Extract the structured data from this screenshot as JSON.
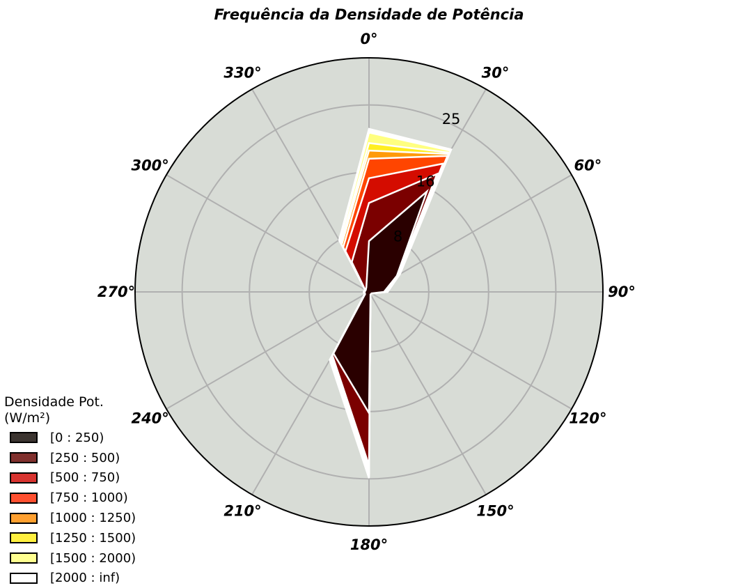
{
  "chart_data": {
    "type": "polar_stacked_area",
    "title": "Frequência da Densidade de Potência",
    "directions": [
      0,
      30,
      60,
      90,
      120,
      150,
      180,
      210,
      240,
      270,
      300,
      330
    ],
    "angle_labels": [
      "0°",
      "30°",
      "60°",
      "90°",
      "120°",
      "150°",
      "180°",
      "210°",
      "240°",
      "270°",
      "300°",
      "330°"
    ],
    "radial_ticks": [
      8,
      16,
      25
    ],
    "rmax": 31.3,
    "legend_title": "Densidade Pot.\n(W/m²)",
    "series": [
      {
        "name": "[0 : 250)",
        "color": "#2a0000",
        "legend_color": "#3b3430",
        "values": [
          6.8,
          15.5,
          4.3,
          2.0,
          0.4,
          0.4,
          16.2,
          9.5,
          0.6,
          0.6,
          0.5,
          0.7
        ]
      },
      {
        "name": "[250 : 500)",
        "color": "#7b0000",
        "legend_color": "#80302d",
        "values": [
          11.9,
          18.2,
          4.4,
          2.1,
          0.4,
          0.4,
          23.2,
          9.8,
          0.6,
          0.6,
          0.6,
          4.6
        ]
      },
      {
        "name": "[500 : 750)",
        "color": "#d40c00",
        "legend_color": "#d83430",
        "values": [
          15.2,
          19.8,
          4.5,
          2.2,
          0.4,
          0.4,
          23.8,
          10.0,
          0.7,
          0.7,
          0.6,
          6.3
        ]
      },
      {
        "name": "[750 : 1000)",
        "color": "#ff4500",
        "legend_color": "#ff5030",
        "values": [
          17.8,
          21.0,
          4.6,
          2.3,
          0.4,
          0.4,
          24.1,
          10.1,
          0.7,
          0.7,
          0.6,
          6.9
        ]
      },
      {
        "name": "[1000 : 1250)",
        "color": "#ff9a0a",
        "legend_color": "#ffa030",
        "values": [
          18.9,
          21.3,
          4.7,
          2.3,
          0.4,
          0.4,
          24.3,
          10.2,
          0.7,
          0.7,
          0.6,
          7.3
        ]
      },
      {
        "name": "[1250 : 1500)",
        "color": "#ffee20",
        "legend_color": "#fff040",
        "values": [
          19.9,
          21.5,
          4.7,
          2.4,
          0.4,
          0.4,
          24.5,
          10.3,
          0.7,
          0.7,
          0.6,
          7.5
        ]
      },
      {
        "name": "[1500 : 2000)",
        "color": "#ffff80",
        "legend_color": "#ffff90",
        "values": [
          21.3,
          21.8,
          4.8,
          2.4,
          0.4,
          0.4,
          24.7,
          10.4,
          0.7,
          0.7,
          0.6,
          7.8
        ]
      },
      {
        "name": "[2000 : inf)",
        "color": "#ffffff",
        "legend_color": "#ffffff",
        "values": [
          21.8,
          22.0,
          4.8,
          2.5,
          0.4,
          0.4,
          24.9,
          10.5,
          0.7,
          0.7,
          0.6,
          8.0
        ]
      }
    ],
    "colors": {
      "background": "#d8dcd6",
      "grid": "#b0b0b0",
      "edge": "#ffffff"
    }
  }
}
